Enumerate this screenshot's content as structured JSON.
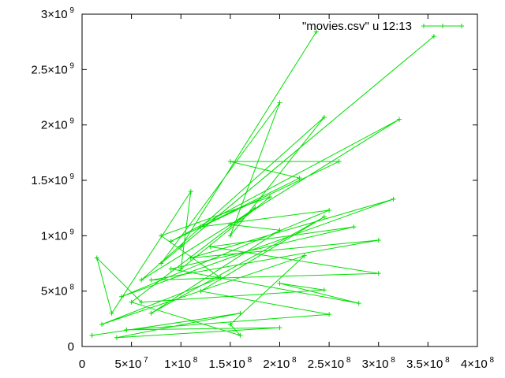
{
  "chart_data": {
    "type": "line",
    "xlim": [
      0,
      400000000
    ],
    "ylim": [
      0,
      3000000000
    ],
    "x_ticks": [
      {
        "value": 0,
        "mantissa": "0",
        "exp": ""
      },
      {
        "value": 50000000,
        "mantissa": "5×10",
        "exp": "7"
      },
      {
        "value": 100000000,
        "mantissa": "1×10",
        "exp": "8"
      },
      {
        "value": 150000000,
        "mantissa": "1.5×10",
        "exp": "8"
      },
      {
        "value": 200000000,
        "mantissa": "2×10",
        "exp": "8"
      },
      {
        "value": 250000000,
        "mantissa": "2.5×10",
        "exp": "8"
      },
      {
        "value": 300000000,
        "mantissa": "3×10",
        "exp": "8"
      },
      {
        "value": 350000000,
        "mantissa": "3.5×10",
        "exp": "8"
      },
      {
        "value": 400000000,
        "mantissa": "4×10",
        "exp": "8"
      }
    ],
    "y_ticks": [
      {
        "value": 0,
        "mantissa": "0",
        "exp": ""
      },
      {
        "value": 500000000,
        "mantissa": "5×10",
        "exp": "8"
      },
      {
        "value": 1000000000,
        "mantissa": "1×10",
        "exp": "9"
      },
      {
        "value": 1500000000,
        "mantissa": "1.5×10",
        "exp": "9"
      },
      {
        "value": 2000000000,
        "mantissa": "2×10",
        "exp": "9"
      },
      {
        "value": 2500000000,
        "mantissa": "2.5×10",
        "exp": "9"
      },
      {
        "value": 3000000000,
        "mantissa": "3×10",
        "exp": "9"
      }
    ],
    "legend": {
      "label": "\"movies.csv\" u 12:13",
      "position": "top-right"
    },
    "grid": false,
    "series": [
      {
        "name": "\"movies.csv\" u 12:13",
        "color": "#00e000",
        "marker": "plus",
        "points": [
          [
            237000000,
            2840000000
          ],
          [
            100000000,
            900000000
          ],
          [
            356000000,
            2800000000
          ],
          [
            80000000,
            750000000
          ],
          [
            200000000,
            2200000000
          ],
          [
            150000000,
            1000000000
          ],
          [
            245000000,
            2070000000
          ],
          [
            60000000,
            600000000
          ],
          [
            321000000,
            2050000000
          ],
          [
            90000000,
            950000000
          ],
          [
            260000000,
            1670000000
          ],
          [
            150000000,
            1670000000
          ],
          [
            220000000,
            1520000000
          ],
          [
            120000000,
            1080000000
          ],
          [
            250000000,
            1230000000
          ],
          [
            40000000,
            450000000
          ],
          [
            315000000,
            1330000000
          ],
          [
            110000000,
            800000000
          ],
          [
            300000000,
            960000000
          ],
          [
            70000000,
            600000000
          ],
          [
            300000000,
            660000000
          ],
          [
            130000000,
            900000000
          ],
          [
            275000000,
            1080000000
          ],
          [
            90000000,
            700000000
          ],
          [
            280000000,
            390000000
          ],
          [
            200000000,
            570000000
          ],
          [
            245000000,
            510000000
          ],
          [
            60000000,
            400000000
          ],
          [
            15000000,
            800000000
          ],
          [
            30000000,
            300000000
          ],
          [
            110000000,
            1400000000
          ],
          [
            100000000,
            700000000
          ],
          [
            190000000,
            1350000000
          ],
          [
            80000000,
            1000000000
          ],
          [
            140000000,
            620000000
          ],
          [
            20000000,
            200000000
          ],
          [
            225000000,
            820000000
          ],
          [
            150000000,
            200000000
          ],
          [
            160000000,
            100000000
          ],
          [
            50000000,
            400000000
          ],
          [
            175000000,
            1250000000
          ],
          [
            150000000,
            1100000000
          ],
          [
            200000000,
            1050000000
          ],
          [
            70000000,
            300000000
          ],
          [
            245000000,
            1170000000
          ],
          [
            120000000,
            500000000
          ],
          [
            250000000,
            290000000
          ],
          [
            45000000,
            150000000
          ],
          [
            200000000,
            170000000
          ],
          [
            35000000,
            80000000
          ],
          [
            160000000,
            300000000
          ],
          [
            10000000,
            100000000
          ]
        ]
      }
    ]
  }
}
